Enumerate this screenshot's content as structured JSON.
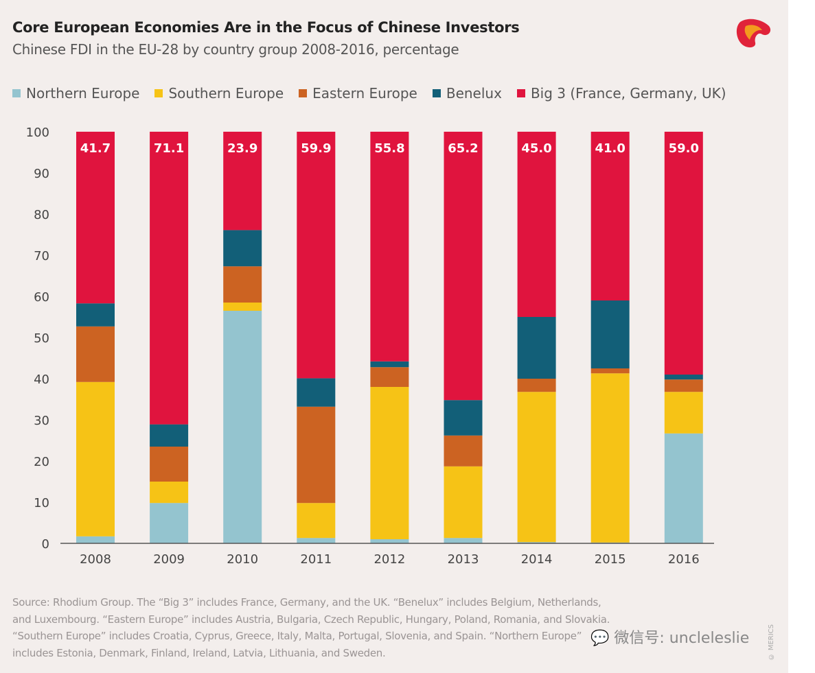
{
  "chart_data": {
    "type": "bar",
    "stacked": true,
    "title": "Core European Economies Are in the Focus of Chinese Investors",
    "subtitle": "Chinese FDI in the EU-28 by country group 2008-2016, percentage",
    "xlabel": "",
    "ylabel": "",
    "ylim": [
      0,
      100
    ],
    "yticks": [
      "0",
      "10",
      "20",
      "30",
      "40",
      "50",
      "60",
      "70",
      "80",
      "90",
      "100"
    ],
    "categories": [
      "2008",
      "2009",
      "2010",
      "2011",
      "2012",
      "2013",
      "2014",
      "2015",
      "2016"
    ],
    "legend_position": "top-left",
    "series": [
      {
        "name": "Northern Europe",
        "color": "#94c4cf",
        "values": [
          1.7,
          9.8,
          56.5,
          1.3,
          1.0,
          1.3,
          0.3,
          0.2,
          26.7
        ]
      },
      {
        "name": "Southern Europe",
        "color": "#f6c316",
        "values": [
          37.5,
          5.2,
          2.0,
          8.5,
          37.0,
          17.4,
          36.5,
          41.1,
          10.1
        ]
      },
      {
        "name": "Eastern Europe",
        "color": "#cc6322",
        "values": [
          13.5,
          8.5,
          8.8,
          23.4,
          4.8,
          7.5,
          3.2,
          1.2,
          3.0
        ]
      },
      {
        "name": "Benelux",
        "color": "#125f78",
        "values": [
          5.6,
          5.4,
          8.8,
          6.9,
          1.4,
          8.6,
          15.0,
          16.5,
          1.2
        ]
      },
      {
        "name": "Big 3 (France, Germany, UK)",
        "color": "#e0143e",
        "values": [
          41.7,
          71.1,
          23.9,
          59.9,
          55.8,
          65.2,
          45.0,
          41.0,
          59.0
        ]
      }
    ],
    "data_labels": [
      "41.7",
      "71.1",
      "23.9",
      "59.9",
      "55.8",
      "65.2",
      "45.0",
      "41.0",
      "59.0"
    ]
  },
  "source": [
    "Source: Rhodium Group. The “Big 3” includes France, Germany, and the UK. “Benelux” includes Belgium, Netherlands,",
    "and Luxembourg. “Eastern Europe” includes Austria, Bulgaria, Czech Republic, Hungary, Poland, Romania, and Slovakia.",
    "“Southern Europe” includes Croatia, Cyprus, Greece, Italy, Malta, Portugal, Slovenia, and Spain. “Northern Europe”",
    "includes Estonia, Denmark, Finland, Ireland, Latvia, Lithuania, and Sweden."
  ],
  "watermark": "微信号: uncleleslie",
  "copyright": "© MERICS"
}
